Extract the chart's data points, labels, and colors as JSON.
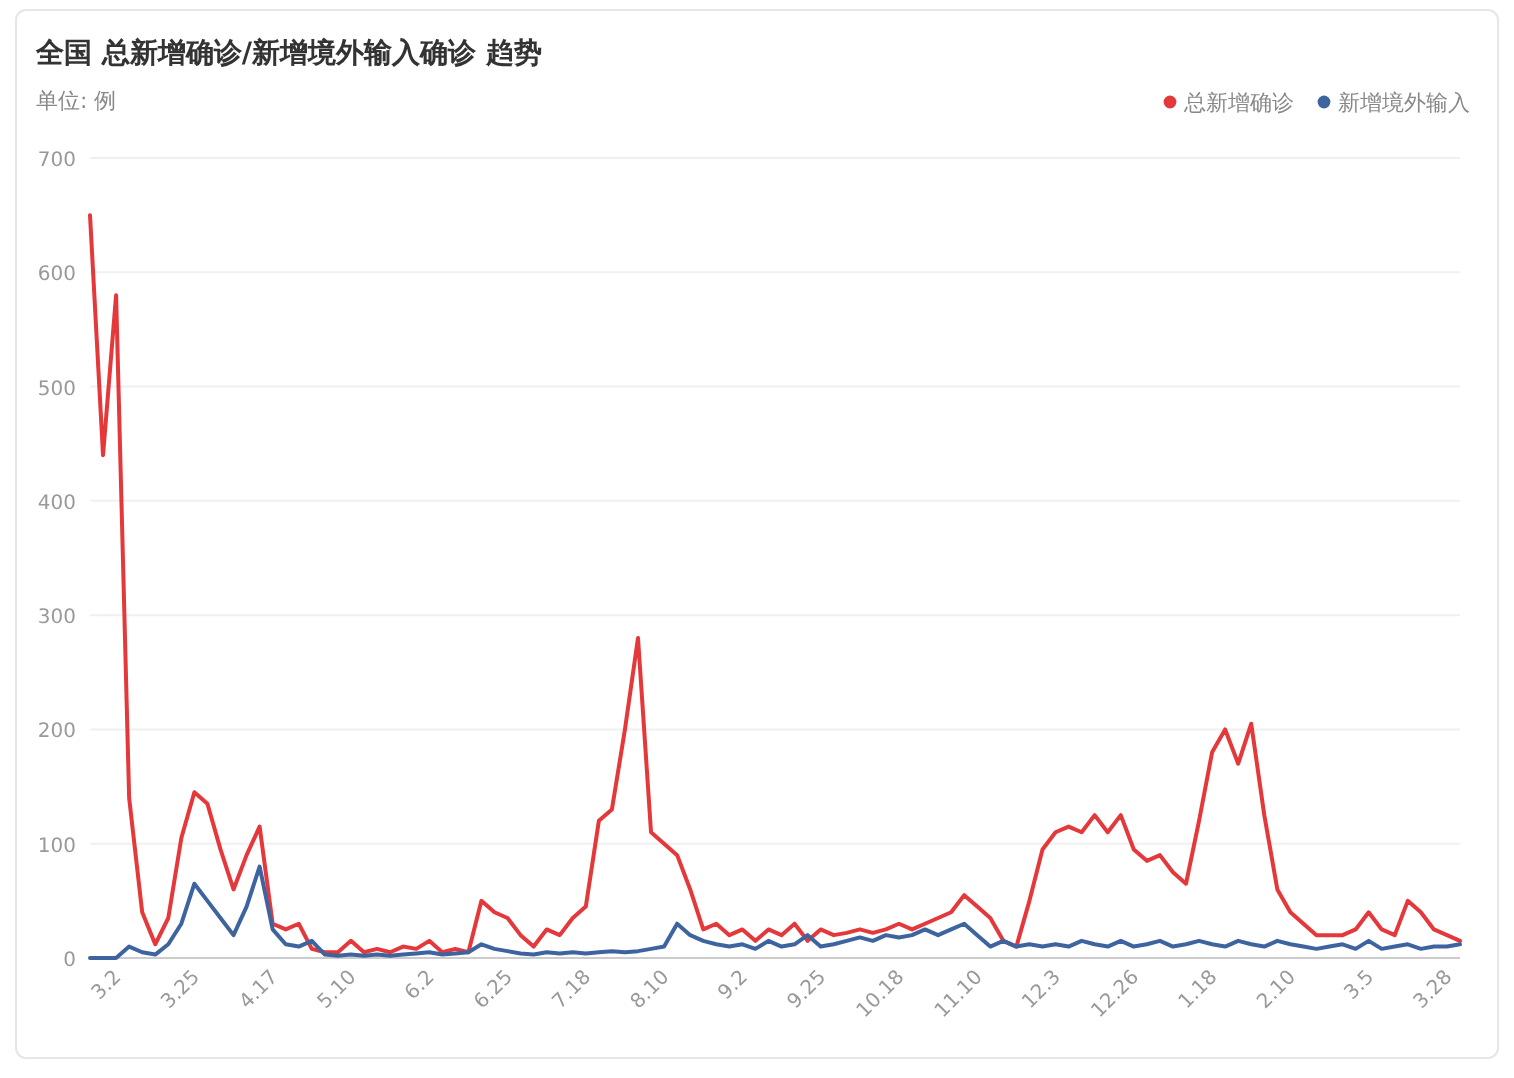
{
  "chart_data": {
    "type": "line",
    "title": "全国 总新增确诊/新增境外输入确诊 趋势",
    "subtitle": "单位: 例",
    "categories": [
      null,
      null,
      "3.2",
      null,
      null,
      null,
      null,
      null,
      "3.25",
      null,
      null,
      null,
      null,
      null,
      "4.17",
      null,
      null,
      null,
      null,
      null,
      "5.10",
      null,
      null,
      null,
      null,
      null,
      "6.2",
      null,
      null,
      null,
      null,
      null,
      "6.25",
      null,
      null,
      null,
      null,
      null,
      "7.18",
      null,
      null,
      null,
      null,
      null,
      "8.10",
      null,
      null,
      null,
      null,
      null,
      "9.2",
      null,
      null,
      null,
      null,
      null,
      "9.25",
      null,
      null,
      null,
      null,
      null,
      "10.18",
      null,
      null,
      null,
      null,
      null,
      "11.10",
      null,
      null,
      null,
      null,
      null,
      "12.3",
      null,
      null,
      null,
      null,
      null,
      "12.26",
      null,
      null,
      null,
      null,
      null,
      "1.18",
      null,
      null,
      null,
      null,
      null,
      "2.10",
      null,
      null,
      null,
      null,
      null,
      "3.5",
      null,
      null,
      null,
      null,
      null,
      "3.28",
      null
    ],
    "series": [
      {
        "name": "总新增确诊",
        "color": "#e5383b",
        "values": [
          650,
          440,
          580,
          140,
          40,
          12,
          35,
          105,
          145,
          135,
          95,
          60,
          90,
          115,
          30,
          25,
          30,
          8,
          5,
          5,
          15,
          5,
          8,
          5,
          10,
          8,
          15,
          5,
          8,
          5,
          50,
          40,
          35,
          20,
          10,
          25,
          20,
          35,
          45,
          120,
          130,
          200,
          280,
          110,
          100,
          90,
          60,
          25,
          30,
          20,
          25,
          15,
          25,
          20,
          30,
          15,
          25,
          20,
          22,
          25,
          22,
          25,
          30,
          25,
          30,
          35,
          40,
          55,
          45,
          35,
          15,
          10,
          50,
          95,
          110,
          115,
          110,
          125,
          110,
          125,
          95,
          85,
          90,
          75,
          65,
          120,
          180,
          200,
          170,
          205,
          125,
          60,
          40,
          30,
          20,
          20,
          20,
          25,
          40,
          25,
          20,
          50,
          40,
          25,
          20,
          15
        ]
      },
      {
        "name": "新增境外输入",
        "color": "#3e64a0",
        "values": [
          0,
          0,
          0,
          10,
          5,
          3,
          12,
          30,
          65,
          50,
          35,
          20,
          45,
          80,
          25,
          12,
          10,
          15,
          3,
          2,
          3,
          2,
          3,
          2,
          3,
          4,
          5,
          3,
          4,
          5,
          12,
          8,
          6,
          4,
          3,
          5,
          4,
          5,
          4,
          5,
          6,
          5,
          6,
          8,
          10,
          30,
          20,
          15,
          12,
          10,
          12,
          8,
          15,
          10,
          12,
          20,
          10,
          12,
          15,
          18,
          15,
          20,
          18,
          20,
          25,
          20,
          25,
          30,
          20,
          10,
          15,
          10,
          12,
          10,
          12,
          10,
          15,
          12,
          10,
          15,
          10,
          12,
          15,
          10,
          12,
          15,
          12,
          10,
          15,
          12,
          10,
          15,
          12,
          10,
          8,
          10,
          12,
          8,
          15,
          8,
          10,
          12,
          8,
          10,
          10,
          12
        ]
      }
    ],
    "ylim": [
      0,
      700
    ],
    "yticks": [
      0,
      100,
      200,
      300,
      400,
      500,
      600,
      700
    ],
    "grid": "y",
    "legend": "top right",
    "line_style": "solid"
  }
}
